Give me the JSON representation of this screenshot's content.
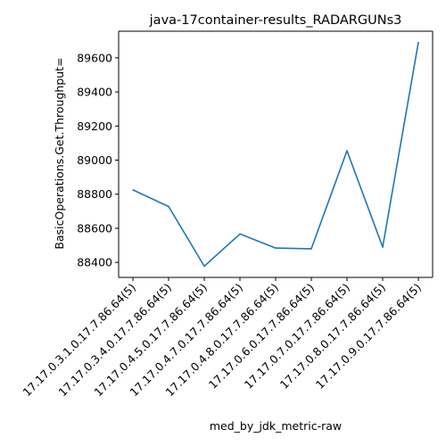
{
  "chart_data": {
    "type": "line",
    "title": "java-17container-results_RADARGUNs3",
    "xlabel": "med_by_jdk_metric-raw",
    "ylabel": "BasicOperations.Get.Throughput=",
    "categories": [
      "17.17.0.3.1.0.17.7.86.64(5)",
      "17.17.0.3.4.0.17.7.86.64(5)",
      "17.17.0.4.5.0.17.7.86.64(5)",
      "17.17.0.4.7.0.17.7.86.64(5)",
      "17.17.0.4.8.0.17.7.86.64(5)",
      "17.17.0.6.0.17.7.86.64(5)",
      "17.17.0.7.0.17.7.86.64(5)",
      "17.17.0.8.0.17.7.86.64(5)",
      "17.17.0.9.0.17.7.86.64(5)"
    ],
    "series": [
      {
        "values": [
          88825,
          88728,
          88378,
          88567,
          88484,
          88480,
          89055,
          88490,
          89690
        ]
      }
    ],
    "yticks": [
      88400,
      88600,
      88800,
      89000,
      89200,
      89400,
      89600
    ],
    "ylim": [
      88312,
      89756
    ],
    "line_color": "#1f77b4",
    "grid": false,
    "legend": "none"
  }
}
